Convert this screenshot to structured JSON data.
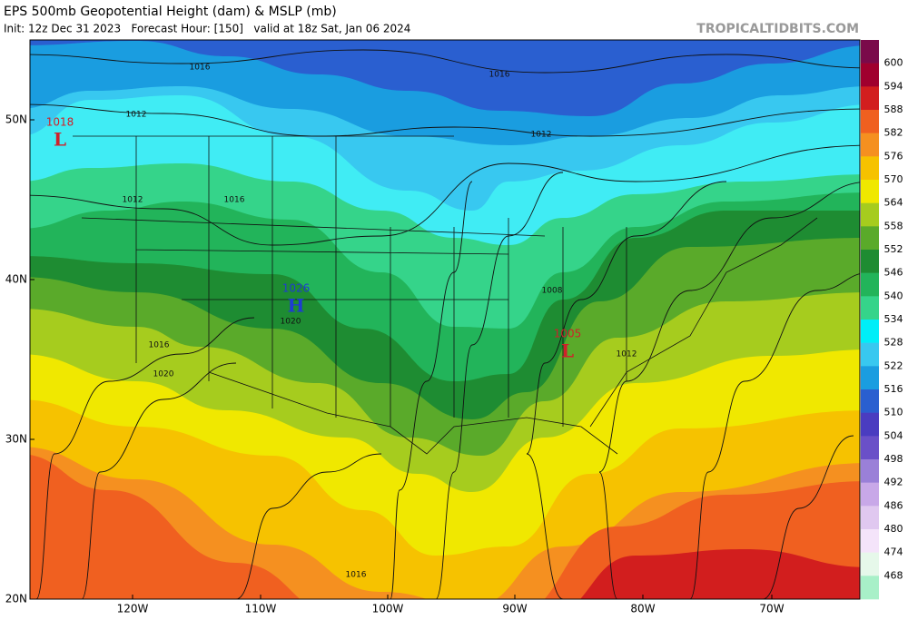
{
  "header": {
    "title": "EPS 500mb Geopotential Height (dam) & MSLP (mb)",
    "subtitle": "Init: 12z Dec 31 2023   Forecast Hour: [150]   valid at 18z Sat, Jan 06 2024",
    "site": "TROPICALTIDBITS.COM"
  },
  "map": {
    "lat_labels": [
      "50N",
      "40N",
      "30N",
      "20N"
    ],
    "lon_labels": [
      "120W",
      "110W",
      "100W",
      "90W",
      "80W",
      "70W"
    ],
    "pressure_centers": [
      {
        "letter": "L",
        "value": 1018,
        "color": "#d0202a"
      },
      {
        "letter": "H",
        "value": 1026,
        "color": "#1e3cd2"
      },
      {
        "letter": "L",
        "value": 1005,
        "color": "#d0202a"
      }
    ],
    "isobar_labels": [
      1016,
      1012,
      1016,
      1012,
      1012,
      1016,
      1008,
      1012,
      1020,
      1016,
      1020,
      1016
    ]
  },
  "colorbar": {
    "labels": [
      600,
      594,
      588,
      582,
      576,
      570,
      564,
      558,
      552,
      546,
      540,
      534,
      528,
      522,
      516,
      510,
      504,
      498,
      492,
      486,
      480,
      474,
      468
    ],
    "colors": [
      "#7a0a4a",
      "#a0002e",
      "#d21e1e",
      "#f06020",
      "#f59020",
      "#f6c200",
      "#f0e800",
      "#a6cc1e",
      "#5aaa2a",
      "#1e8c32",
      "#22b45a",
      "#35d48a",
      "#00eef8",
      "#38c8f0",
      "#1a9de0",
      "#2a5fd0",
      "#4a3cc0",
      "#6a50c8",
      "#9a80d8",
      "#c8a8e8",
      "#e0c8f0",
      "#f4e4fa",
      "#e6f8ea",
      "#a8f0c8"
    ]
  }
}
